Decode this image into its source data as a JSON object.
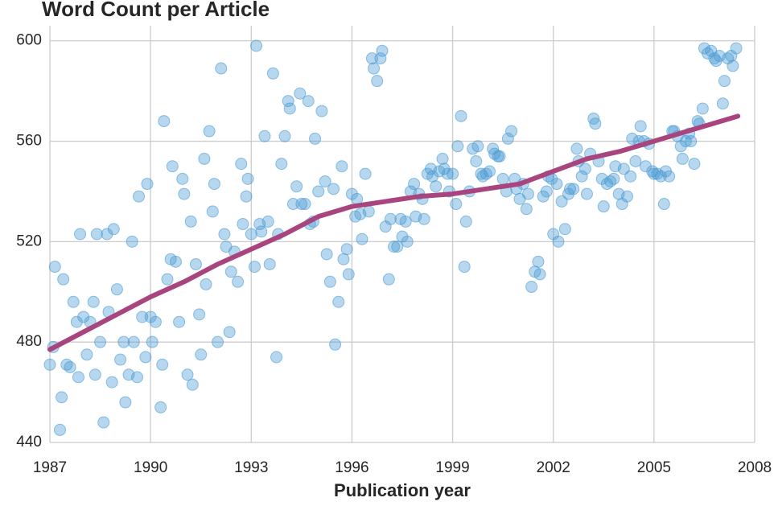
{
  "chart_data": {
    "type": "scatter",
    "title": "Word Count per Article",
    "x_label": "Publication year",
    "x": [
      1987.0,
      1987.15,
      1987.1,
      1987.3,
      1987.35,
      1987.4,
      1987.5,
      1987.6,
      1987.7,
      1987.8,
      1987.85,
      1987.9,
      1988.0,
      1988.1,
      1988.2,
      1988.3,
      1988.35,
      1988.4,
      1988.5,
      1988.6,
      1988.7,
      1988.75,
      1988.85,
      1988.9,
      1989.0,
      1989.1,
      1989.2,
      1989.25,
      1989.35,
      1989.45,
      1989.5,
      1989.6,
      1989.65,
      1989.75,
      1989.85,
      1989.9,
      1990.0,
      1990.05,
      1990.15,
      1990.3,
      1990.35,
      1990.4,
      1990.5,
      1990.6,
      1990.65,
      1990.75,
      1990.85,
      1990.95,
      1991.0,
      1991.1,
      1991.2,
      1991.25,
      1991.35,
      1991.45,
      1991.5,
      1991.6,
      1991.65,
      1991.75,
      1991.85,
      1991.9,
      1992.0,
      1992.1,
      1992.2,
      1992.25,
      1992.35,
      1992.4,
      1992.5,
      1992.6,
      1992.7,
      1992.75,
      1992.85,
      1992.9,
      1993.0,
      1993.1,
      1993.15,
      1993.25,
      1993.3,
      1993.4,
      1993.5,
      1993.55,
      1993.65,
      1993.75,
      1993.8,
      1993.9,
      1994.0,
      1994.1,
      1994.15,
      1994.25,
      1994.35,
      1994.45,
      1994.5,
      1994.6,
      1994.7,
      1994.75,
      1994.85,
      1994.9,
      1995.0,
      1995.1,
      1995.2,
      1995.25,
      1995.35,
      1995.45,
      1995.5,
      1995.6,
      1995.7,
      1995.75,
      1995.85,
      1995.9,
      1996.0,
      1996.1,
      1996.15,
      1996.25,
      1996.3,
      1996.4,
      1996.5,
      1996.6,
      1996.65,
      1996.75,
      1996.85,
      1996.9,
      1997.0,
      1997.1,
      1997.15,
      1997.25,
      1997.35,
      1997.45,
      1997.5,
      1997.6,
      1997.65,
      1997.75,
      1997.85,
      1997.9,
      1998.0,
      1998.1,
      1998.15,
      1998.25,
      1998.35,
      1998.4,
      1998.5,
      1998.6,
      1998.7,
      1998.75,
      1998.85,
      1998.9,
      1999.0,
      1999.1,
      1999.15,
      1999.25,
      1999.35,
      1999.4,
      1999.5,
      1999.6,
      1999.7,
      1999.75,
      1999.85,
      1999.9,
      2000.0,
      2000.1,
      2000.2,
      2000.25,
      2000.35,
      2000.4,
      2000.5,
      2000.6,
      2000.65,
      2000.75,
      2000.85,
      2000.9,
      2001.0,
      2001.1,
      2001.2,
      2001.25,
      2001.35,
      2001.45,
      2001.55,
      2001.6,
      2001.7,
      2001.8,
      2001.85,
      2001.95,
      2002.0,
      2002.1,
      2002.15,
      2002.25,
      2002.35,
      2002.45,
      2002.5,
      2002.6,
      2002.7,
      2002.75,
      2002.85,
      2002.95,
      2003.0,
      2003.1,
      2003.2,
      2003.25,
      2003.35,
      2003.45,
      2003.5,
      2003.6,
      2003.7,
      2003.8,
      2003.85,
      2003.95,
      2004.05,
      2004.1,
      2004.2,
      2004.3,
      2004.35,
      2004.45,
      2004.55,
      2004.6,
      2004.7,
      2004.75,
      2004.85,
      2004.95,
      2005.0,
      2005.1,
      2005.2,
      2005.3,
      2005.35,
      2005.45,
      2005.55,
      2005.6,
      2005.7,
      2005.8,
      2005.85,
      2005.95,
      2006.05,
      2006.1,
      2006.2,
      2006.3,
      2006.35,
      2006.45,
      2006.5,
      2006.6,
      2006.7,
      2006.8,
      2006.85,
      2006.95,
      2007.05,
      2007.1,
      2007.2,
      2007.3,
      2007.35,
      2007.45
    ],
    "y": [
      471,
      510,
      478,
      445,
      458,
      505,
      471,
      470,
      496,
      488,
      466,
      523,
      490,
      475,
      488,
      496,
      467,
      523,
      480,
      448,
      523,
      492,
      464,
      525,
      501,
      473,
      480,
      456,
      467,
      520,
      480,
      466,
      538,
      490,
      474,
      543,
      490,
      480,
      488,
      454,
      471,
      568,
      505,
      513,
      550,
      512,
      488,
      545,
      539,
      467,
      528,
      463,
      511,
      491,
      475,
      553,
      503,
      564,
      532,
      543,
      480,
      589,
      523,
      518,
      484,
      508,
      516,
      504,
      551,
      527,
      538,
      545,
      523,
      510,
      598,
      527,
      524,
      562,
      528,
      511,
      587,
      474,
      523,
      551,
      562,
      576,
      573,
      535,
      542,
      579,
      535,
      535,
      576,
      527,
      528,
      561,
      540,
      572,
      544,
      515,
      504,
      541,
      479,
      496,
      550,
      513,
      517,
      507,
      539,
      530,
      537,
      531,
      521,
      547,
      532,
      593,
      589,
      584,
      593,
      596,
      526,
      505,
      529,
      518,
      518,
      529,
      522,
      528,
      520,
      540,
      543,
      530,
      539,
      537,
      529,
      547,
      549,
      546,
      542,
      548,
      553,
      549,
      547,
      540,
      547,
      535,
      558,
      570,
      510,
      528,
      540,
      557,
      552,
      558,
      547,
      546,
      547,
      548,
      557,
      555,
      554,
      554,
      545,
      540,
      561,
      564,
      545,
      541,
      537,
      543,
      533,
      539,
      502,
      508,
      512,
      507,
      538,
      540,
      546,
      545,
      523,
      543,
      520,
      536,
      525,
      539,
      541,
      541,
      557,
      552,
      546,
      549,
      539,
      555,
      569,
      567,
      552,
      545,
      534,
      543,
      544,
      545,
      550,
      539,
      535,
      549,
      538,
      546,
      561,
      552,
      560,
      566,
      560,
      550,
      559,
      548,
      547,
      547,
      546,
      535,
      548,
      546,
      564,
      564,
      562,
      558,
      553,
      560,
      563,
      560,
      551,
      568,
      567,
      573,
      597,
      595,
      596,
      593,
      592,
      594,
      575,
      584,
      593,
      594,
      590,
      597
    ],
    "color": "#4a9bd4",
    "trend": {
      "color": "#a8457f",
      "x": [
        1987,
        1988,
        1989,
        1990,
        1991,
        1992,
        1993,
        1994,
        1995,
        1996,
        1997,
        1998,
        1999,
        2000,
        2001,
        2002,
        2003,
        2004,
        2005,
        2006,
        2007,
        2007.5
      ],
      "y": [
        477,
        484,
        491,
        498,
        504,
        511,
        517,
        523,
        530,
        534,
        536,
        538,
        539,
        541,
        543,
        548,
        553,
        556,
        560,
        564,
        568,
        570
      ]
    },
    "xlim": [
      1987,
      2008
    ],
    "ylim": [
      440,
      606
    ],
    "xticks": [
      1987,
      1990,
      1993,
      1996,
      1999,
      2002,
      2005,
      2008
    ],
    "yticks": [
      440,
      480,
      520,
      560,
      600
    ],
    "grid": true
  }
}
